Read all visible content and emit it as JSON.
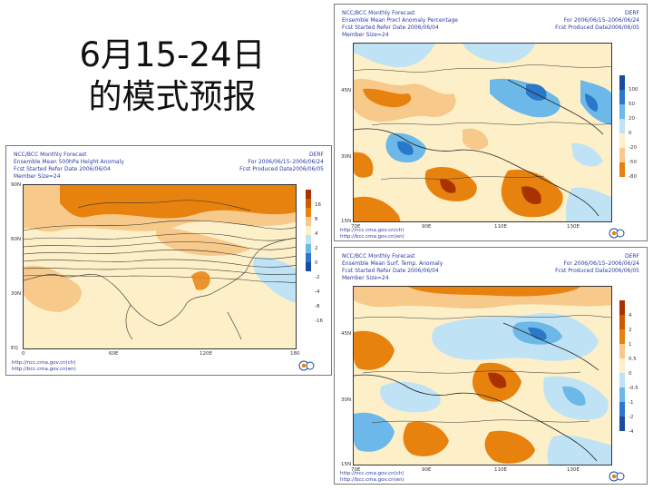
{
  "slide": {
    "title_line1": "6月15-24日",
    "title_line2": "的模式预报"
  },
  "panels": {
    "height": {
      "line1_left": "NCC/BCC Monthly Forecast",
      "line1_right": "DERF",
      "line2_left": "Ensemble Mean 500hPa Height Anomaly",
      "line2_right": "For 2006/06/15–2006/06/24",
      "line3_left": "Fcst Started Refer Date 2006/06/04",
      "line3_right": "Fcst Produced Date2006/06/05",
      "line4_left": "Member Size=24",
      "lat_labels": [
        "90N",
        "60N",
        "30N",
        "EQ"
      ],
      "lon_labels": [
        "0",
        "60E",
        "120E",
        "180"
      ],
      "colorbar_labels": [
        "16",
        "8",
        "4",
        "2",
        "0",
        "-2",
        "-4",
        "-8",
        "-16"
      ],
      "url1": "http://ncc.cma.gov.cn(ch)",
      "url2": "http://bcc.cma.gov.cn(en)"
    },
    "precip": {
      "line1_left": "NCC/BCC Monthly Forecast",
      "line1_right": "DERF",
      "line2_left": "Ensemble Mean Precl Anomaly Percentage",
      "line2_right": "For 2006/06/15–2006/06/24",
      "line3_left": "Fcst Started Refer Date 2006/06/04",
      "line3_right": "Fcst Produced Date2006/06/05",
      "line4_left": "Member Size=24",
      "lat_labels": [
        "45N",
        "30N",
        "15N"
      ],
      "lon_labels": [
        "70E",
        "90E",
        "110E",
        "130E"
      ],
      "colorbar_labels": [
        "100",
        "50",
        "20",
        "0",
        "-20",
        "-50",
        "-80"
      ],
      "url1": "http://ncc.cma.gov.cn(ch)",
      "url2": "http://bcc.cma.gov.cn(en)"
    },
    "temp": {
      "line1_left": "NCC/BCC Monthly Forecast",
      "line1_right": "DERF",
      "line2_left": "Ensemble Mean Surf. Temp. Anomaly",
      "line2_right": "For 2006/06/15–2006/06/24",
      "line3_left": "Fcst Started Refer Date 2006/06/04",
      "line3_right": "Fcst Produced Date2006/06/05",
      "line4_left": "Member Size=24",
      "lat_labels": [
        "45N",
        "30N",
        "15N"
      ],
      "lon_labels": [
        "70E",
        "90E",
        "110E",
        "130E"
      ],
      "colorbar_labels": [
        "4",
        "2",
        "1",
        "0.5",
        "0",
        "-0.5",
        "-1",
        "-2",
        "-4"
      ],
      "url1": "http://ncc.cma.gov.cn(ch)",
      "url2": "http://bcc.cma.gov.cn(en)"
    }
  },
  "colors": {
    "orange_strong": "#e8820e",
    "orange_light": "#f7c98a",
    "cream": "#fdf0c8",
    "blue_light": "#bfe3f5",
    "blue_mid": "#6cb8e8",
    "blue_strong": "#2a78c9",
    "header_text": "#2a3aa0"
  }
}
